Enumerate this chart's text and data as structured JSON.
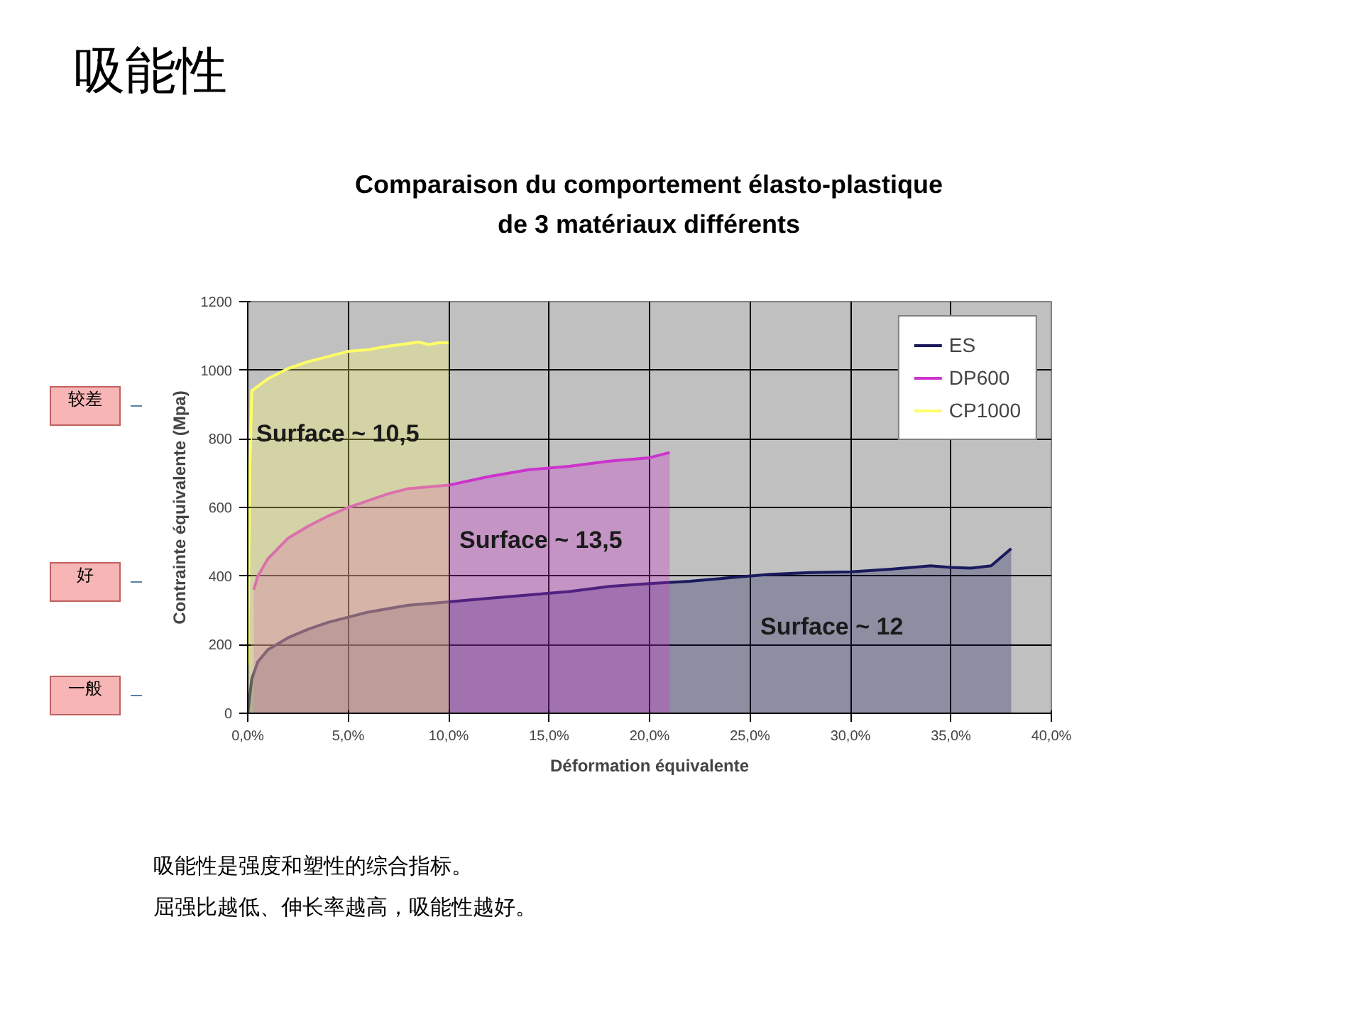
{
  "chart_data": {
    "type": "area",
    "title": "Comparaison du comportement élasto-plastique\nde 3 matériaux différents",
    "xlabel": "Déformation équivalente",
    "ylabel": "Contrainte équivalente (Mpa)",
    "xlim": [
      0,
      40
    ],
    "ylim": [
      0,
      1200
    ],
    "xticks": [
      {
        "value": 0,
        "label": "0,0%"
      },
      {
        "value": 5,
        "label": "5,0%"
      },
      {
        "value": 10,
        "label": "10,0%"
      },
      {
        "value": 15,
        "label": "15,0%"
      },
      {
        "value": 20,
        "label": "20,0%"
      },
      {
        "value": 25,
        "label": "25,0%"
      },
      {
        "value": 30,
        "label": "30,0%"
      },
      {
        "value": 35,
        "label": "35,0%"
      },
      {
        "value": 40,
        "label": "40,0%"
      }
    ],
    "yticks": [
      0,
      200,
      400,
      600,
      800,
      1000,
      1200
    ],
    "grid": true,
    "legend": "top right",
    "series": [
      {
        "name": "ES",
        "color": "#1a1a5e",
        "x": [
          0,
          0.2,
          0.5,
          1,
          2,
          3,
          4,
          5,
          6,
          7,
          8,
          10,
          12,
          14,
          16,
          18,
          20,
          22,
          24,
          26,
          28,
          30,
          32,
          34,
          35,
          36,
          37,
          38
        ],
        "values": [
          0,
          100,
          150,
          185,
          220,
          245,
          265,
          280,
          295,
          305,
          315,
          325,
          335,
          345,
          355,
          370,
          378,
          385,
          395,
          405,
          410,
          412,
          420,
          430,
          425,
          423,
          430,
          480
        ]
      },
      {
        "name": "DP600",
        "color": "#cc33cc",
        "x": [
          0.3,
          0.5,
          1,
          2,
          3,
          4,
          5,
          6,
          7,
          8,
          9,
          10,
          12,
          14,
          16,
          18,
          20,
          21
        ],
        "values": [
          360,
          400,
          450,
          510,
          545,
          575,
          600,
          620,
          640,
          655,
          660,
          665,
          690,
          710,
          720,
          735,
          745,
          760
        ]
      },
      {
        "name": "CP1000",
        "color": "#ffff66",
        "x": [
          0,
          0.1,
          0.2,
          1,
          2,
          3,
          4,
          5,
          6,
          7,
          8,
          8.5,
          9,
          9.5,
          10
        ],
        "values": [
          140,
          700,
          940,
          975,
          1005,
          1025,
          1040,
          1055,
          1060,
          1070,
          1078,
          1082,
          1075,
          1080,
          1080
        ]
      }
    ],
    "annotations": [
      "吸能性",
      "Surface ~ 10,5",
      "Surface ~ 13,5",
      "Surface ~ 12",
      "较差",
      "好",
      "一般",
      "吸能性是强度和塑性的综合指标。",
      "屈强比越低、伸长率越高，吸能性越好。"
    ]
  }
}
